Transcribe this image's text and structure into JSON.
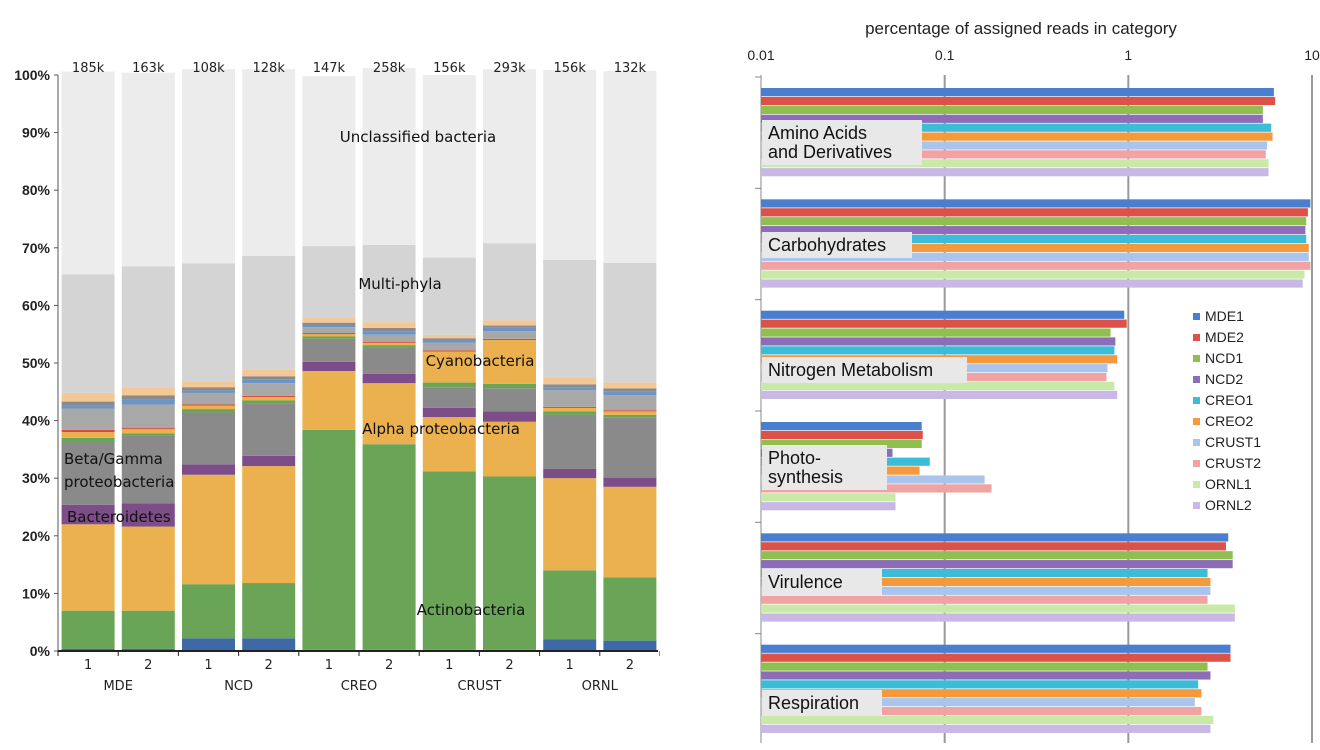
{
  "chart_data": [
    {
      "type": "bar",
      "stacked": true,
      "percent": true,
      "y_ticks": [
        "0%",
        "10%",
        "20%",
        "30%",
        "40%",
        "50%",
        "60%",
        "70%",
        "80%",
        "90%",
        "100%"
      ],
      "ylim": [
        0,
        100
      ],
      "categories": [
        "1",
        "2",
        "1",
        "2",
        "1",
        "2",
        "1",
        "2",
        "1",
        "2"
      ],
      "groups": [
        "MDE",
        "NCD",
        "CREO",
        "CRUST",
        "ORNL"
      ],
      "read_counts": [
        "185k",
        "163k",
        "108k",
        "128k",
        "147k",
        "258k",
        "156k",
        "293k",
        "156k",
        "132k"
      ],
      "series": [
        {
          "color": "#3d6aa6",
          "values": [
            0.4,
            0.4,
            2.2,
            2.2,
            0.2,
            0.2,
            0.2,
            0.2,
            2.0,
            1.8
          ]
        },
        {
          "name": "Actinobacteria",
          "color": "#6aa457",
          "values": [
            6.6,
            6.6,
            9.4,
            9.6,
            38.2,
            35.7,
            31.0,
            30.1,
            12.0,
            11.0
          ]
        },
        {
          "name": "Alpha proteobacteria",
          "color": "#ebb14e",
          "values": [
            15.0,
            14.6,
            19.0,
            20.3,
            10.2,
            10.6,
            9.4,
            9.5,
            16.0,
            15.7
          ]
        },
        {
          "name": "Bacteroidetes",
          "color": "#7d4d8a",
          "values": [
            3.4,
            4.0,
            1.8,
            1.8,
            1.6,
            1.6,
            1.6,
            1.8,
            1.6,
            1.6
          ]
        },
        {
          "name": "Beta/Gamma proteobacteria",
          "color": "#8a8a8a",
          "values": [
            10.8,
            11.8,
            9.0,
            9.0,
            4.0,
            4.6,
            3.6,
            4.0,
            9.4,
            10.4
          ]
        },
        {
          "color": "#6aa457",
          "values": [
            0.8,
            0.4,
            0.6,
            0.6,
            0.4,
            0.4,
            0.8,
            0.8,
            0.6,
            0.5
          ]
        },
        {
          "name": "Cyanobacteria",
          "color": "#ebb14e",
          "values": [
            1.0,
            0.7,
            0.6,
            0.6,
            0.4,
            0.4,
            5.4,
            7.6,
            0.6,
            0.6
          ]
        },
        {
          "color": "#d84a3a",
          "values": [
            0.4,
            0.2,
            0.2,
            0.2,
            0.2,
            0.2,
            0.2,
            0.2,
            0.2,
            0.2
          ]
        },
        {
          "color": "#a8a8a8",
          "values": [
            3.7,
            4.1,
            2.0,
            2.2,
            1.0,
            1.2,
            1.3,
            1.3,
            2.9,
            2.6
          ]
        },
        {
          "color": "#6b95c6",
          "values": [
            0.6,
            0.8,
            0.4,
            0.6,
            0.4,
            0.6,
            0.4,
            0.6,
            0.4,
            0.6
          ]
        },
        {
          "color": "#8a8a8a",
          "values": [
            0.6,
            0.8,
            0.6,
            0.6,
            0.4,
            0.6,
            0.4,
            0.4,
            0.6,
            0.6
          ]
        },
        {
          "color": "#f3c896",
          "values": [
            1.5,
            1.4,
            0.9,
            1.1,
            0.8,
            1.0,
            0.6,
            0.9,
            1.2,
            1.0
          ]
        },
        {
          "name": "Multi-phyla",
          "color": "#d4d4d4",
          "values": [
            20.6,
            21.0,
            20.6,
            19.8,
            12.5,
            13.4,
            13.4,
            13.4,
            20.4,
            20.8
          ]
        },
        {
          "name": "Unclassified bacteria",
          "color": "#ececec",
          "values": [
            35.2,
            33.6,
            33.7,
            32.4,
            29.5,
            30.7,
            31.7,
            30.2,
            33.0,
            33.3
          ]
        }
      ],
      "annotations": [
        "Unclassified bacteria",
        "Multi-phyla",
        "Cyanobacteria",
        "Alpha proteobacteria",
        "Beta/Gamma",
        "proteobacteria",
        "Bacteroidetes",
        "Actinobacteria"
      ]
    },
    {
      "type": "bar",
      "orientation": "horizontal",
      "title": "percentage of assigned reads in category",
      "x_scale": "log",
      "xlim": [
        0.01,
        10
      ],
      "x_ticks": [
        "0.01",
        "0.1",
        "1",
        "10"
      ],
      "legend_position": "right",
      "categories": [
        {
          "label_lines": [
            "Amino Acids",
            "and Derivatives"
          ]
        },
        {
          "label_lines": [
            "Carbohydrates"
          ]
        },
        {
          "label_lines": [
            "Nitrogen Metabolism"
          ]
        },
        {
          "label_lines": [
            "Photo-",
            "synthesis"
          ]
        },
        {
          "label_lines": [
            "Virulence"
          ]
        },
        {
          "label_lines": [
            "Respiration"
          ]
        }
      ],
      "series": [
        {
          "name": "MDE1",
          "color": "#4a7fd0",
          "values": [
            6.2,
            9.8,
            0.95,
            0.075,
            3.5,
            3.6
          ]
        },
        {
          "name": "MDE2",
          "color": "#dc5148",
          "values": [
            6.3,
            9.5,
            0.98,
            0.076,
            3.4,
            3.6
          ]
        },
        {
          "name": "NCD1",
          "color": "#8fbf4f",
          "values": [
            5.4,
            9.3,
            0.8,
            0.075,
            3.7,
            2.7
          ]
        },
        {
          "name": "NCD2",
          "color": "#8e6db8",
          "values": [
            5.4,
            9.2,
            0.85,
            0.052,
            3.7,
            2.8
          ]
        },
        {
          "name": "CREO1",
          "color": "#3bbdd8",
          "values": [
            6.0,
            9.3,
            0.84,
            0.083,
            2.7,
            2.4
          ]
        },
        {
          "name": "CREO2",
          "color": "#f59a3c",
          "values": [
            6.1,
            9.6,
            0.87,
            0.073,
            2.8,
            2.5
          ]
        },
        {
          "name": "CRUST1",
          "color": "#a9c5ed",
          "values": [
            5.7,
            9.6,
            0.77,
            0.165,
            2.8,
            2.3
          ]
        },
        {
          "name": "CRUST2",
          "color": "#f1a3a3",
          "values": [
            5.6,
            9.8,
            0.76,
            0.18,
            2.7,
            2.5
          ]
        },
        {
          "name": "ORNL1",
          "color": "#c9e9a8",
          "values": [
            5.8,
            9.1,
            0.84,
            0.054,
            3.8,
            2.9
          ]
        },
        {
          "name": "ORNL2",
          "color": "#c9b8e6",
          "values": [
            5.8,
            8.9,
            0.87,
            0.054,
            3.8,
            2.8
          ]
        }
      ]
    }
  ]
}
